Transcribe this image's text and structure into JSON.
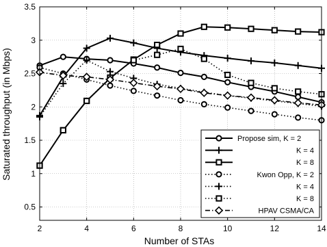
{
  "chart_data": {
    "type": "line",
    "xlabel": "Number of STAs",
    "ylabel": "Saturated throughput (in Mbps)",
    "xlim": [
      2,
      14
    ],
    "ylim": [
      0.3,
      3.5
    ],
    "xticks": [
      2,
      4,
      6,
      8,
      10,
      12,
      14
    ],
    "yticks": [
      0.5,
      1,
      1.5,
      2,
      2.5,
      3,
      3.5
    ],
    "xtick_labels": [
      "2",
      "4",
      "6",
      "8",
      "10",
      "12",
      "14"
    ],
    "ytick_labels": [
      "0.5",
      "1",
      "1.5",
      "2",
      "2.5",
      "3",
      "3.5"
    ],
    "grid": true,
    "legend_position": "bottom-right",
    "x": [
      2,
      3,
      4,
      5,
      6,
      7,
      8,
      9,
      10,
      11,
      12,
      13,
      14
    ],
    "series": [
      {
        "name": "Propose sim, K = 2",
        "marker": "circle",
        "line": "solid",
        "values": [
          2.62,
          2.75,
          2.72,
          2.7,
          2.65,
          2.59,
          2.51,
          2.45,
          2.37,
          2.3,
          2.23,
          2.15,
          2.07
        ]
      },
      {
        "name": "K = 4",
        "marker": "plus",
        "line": "solid",
        "values": [
          1.87,
          2.45,
          2.88,
          3.03,
          2.96,
          2.88,
          2.82,
          2.77,
          2.73,
          2.69,
          2.66,
          2.62,
          2.58
        ]
      },
      {
        "name": "K = 8",
        "marker": "square",
        "line": "solid",
        "values": [
          1.12,
          1.65,
          2.09,
          2.43,
          2.71,
          2.93,
          3.1,
          3.2,
          3.19,
          3.17,
          3.15,
          3.13,
          3.12
        ]
      },
      {
        "name": "Kwon Opp, K = 2",
        "marker": "circle",
        "line": "dotted",
        "values": [
          2.59,
          2.5,
          2.41,
          2.32,
          2.24,
          2.17,
          2.1,
          2.04,
          1.99,
          1.94,
          1.89,
          1.84,
          1.8
        ]
      },
      {
        "name": "K = 4",
        "marker": "plus",
        "line": "dotted",
        "values": [
          1.85,
          2.35,
          2.7,
          2.53,
          2.43,
          2.34,
          2.28,
          2.22,
          2.17,
          2.13,
          2.09,
          2.05,
          2.01
        ]
      },
      {
        "name": "K = 8",
        "marker": "square",
        "line": "dotted",
        "values": [
          1.12,
          1.65,
          2.09,
          2.44,
          2.7,
          2.78,
          2.87,
          2.72,
          2.48,
          2.36,
          2.28,
          2.23,
          2.19
        ]
      },
      {
        "name": "HPAV CSMA/CA",
        "marker": "diamond",
        "line": "dashdot",
        "values": [
          2.52,
          2.47,
          2.45,
          2.41,
          2.36,
          2.31,
          2.27,
          2.21,
          2.17,
          2.14,
          2.1,
          2.06,
          2.03
        ]
      }
    ]
  }
}
